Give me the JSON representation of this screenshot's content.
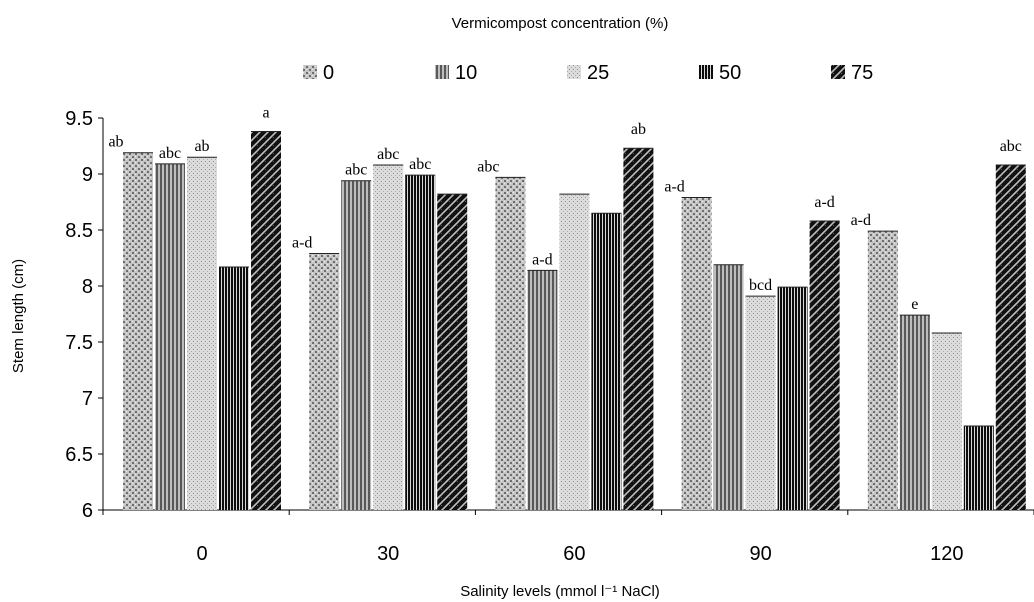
{
  "chart_data": {
    "type": "bar",
    "title": "Vermicompost concentration (%)",
    "xlabel": "Salinity levels (mmol l⁻¹ NaCl)",
    "ylabel": "Stem length (cm)",
    "ylim": [
      6,
      9.5
    ],
    "yticks": [
      "6",
      "6.5",
      "7",
      "7.5",
      "8",
      "8.5",
      "9",
      "9.5"
    ],
    "categories": [
      "0",
      "30",
      "60",
      "90",
      "120"
    ],
    "legend_position": "top",
    "grid": false,
    "series": [
      {
        "name": "0",
        "values": [
          9.19,
          8.29,
          8.97,
          8.79,
          8.49
        ]
      },
      {
        "name": "10",
        "values": [
          9.09,
          8.94,
          8.14,
          8.19,
          7.74
        ]
      },
      {
        "name": "25",
        "values": [
          9.15,
          9.08,
          8.82,
          7.91,
          7.58
        ]
      },
      {
        "name": "50",
        "values": [
          8.17,
          8.99,
          8.65,
          7.99,
          6.75
        ]
      },
      {
        "name": "75",
        "values": [
          9.38,
          8.82,
          9.23,
          8.58,
          9.08
        ]
      }
    ],
    "annotations": [
      [
        "ab",
        "abc",
        "ab",
        "",
        "a"
      ],
      [
        "a-d",
        "abc",
        "abc",
        "abc",
        ""
      ],
      [
        "abc",
        "a-d",
        "",
        "",
        "ab"
      ],
      [
        "a-d",
        "",
        "bcd",
        "",
        "a-d"
      ],
      [
        "a-d",
        "e",
        "",
        "",
        "abc"
      ]
    ]
  }
}
